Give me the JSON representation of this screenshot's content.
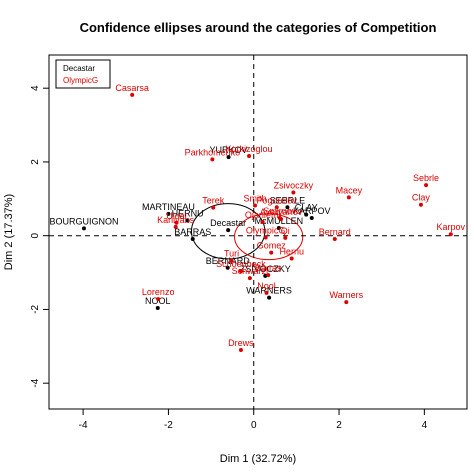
{
  "chart_data": {
    "type": "scatter",
    "title": "Confidence ellipses around the categories of Competition",
    "xlabel": "Dim 1 (32.72%)",
    "ylabel": "Dim 2 (17.37%)",
    "xlim": [
      -4.8,
      5.0
    ],
    "ylim": [
      -4.7,
      4.9
    ],
    "x_ticks": [
      -4,
      -2,
      0,
      2,
      4
    ],
    "y_ticks": [
      -4,
      -2,
      0,
      2,
      4
    ],
    "reference_lines": {
      "x": 0,
      "y": 0,
      "style": "dashed"
    },
    "grid": false,
    "legend": {
      "position": "top-left",
      "entries": [
        "Decastar",
        "OlympicG"
      ]
    },
    "colors": {
      "Decastar": "#000000",
      "OlympicG": "#dd0000"
    },
    "series": [
      {
        "name": "Decastar",
        "points": [
          {
            "label": "SEBRLE",
            "x": 0.79,
            "y": 0.77
          },
          {
            "label": "CLAY",
            "x": 1.23,
            "y": 0.57
          },
          {
            "label": "KARPOV",
            "x": 1.36,
            "y": 0.48
          },
          {
            "label": "BERNARD",
            "x": -0.61,
            "y": -0.87
          },
          {
            "label": "YURKOV",
            "x": -0.59,
            "y": 2.13
          },
          {
            "label": "WARNERS",
            "x": 0.36,
            "y": -1.68
          },
          {
            "label": "ZSIVOCZKY",
            "x": 0.27,
            "y": -1.09
          },
          {
            "label": "McMULLEN",
            "x": 0.59,
            "y": 0.21
          },
          {
            "label": "MARTINEAU",
            "x": -2.0,
            "y": 0.59
          },
          {
            "label": "HERNU",
            "x": -1.55,
            "y": 0.41
          },
          {
            "label": "BARRAS",
            "x": -1.43,
            "y": -0.09
          },
          {
            "label": "NOOL",
            "x": -2.25,
            "y": -1.96
          },
          {
            "label": "BOURGUIGNON",
            "x": -3.98,
            "y": 0.2
          }
        ]
      },
      {
        "name": "OlympicG",
        "points": [
          {
            "label": "Sebrle",
            "x": 4.04,
            "y": 1.37
          },
          {
            "label": "Clay",
            "x": 3.92,
            "y": 0.84
          },
          {
            "label": "Karpov",
            "x": 4.62,
            "y": 0.04
          },
          {
            "label": "Macey",
            "x": 2.23,
            "y": 1.04
          },
          {
            "label": "Warners",
            "x": 2.17,
            "y": -1.8
          },
          {
            "label": "Zsivoczky",
            "x": 0.93,
            "y": 1.17
          },
          {
            "label": "Hernu",
            "x": 0.89,
            "y": -0.62
          },
          {
            "label": "Nool",
            "x": 0.3,
            "y": -1.55
          },
          {
            "label": "Bernard",
            "x": 1.9,
            "y": -0.09
          },
          {
            "label": "Schwarzl",
            "x": -0.09,
            "y": -1.15
          },
          {
            "label": "Pogorelov",
            "x": 0.54,
            "y": 0.77
          },
          {
            "label": "Schoenbeck",
            "x": -0.3,
            "y": -0.96
          },
          {
            "label": "Barras",
            "x": 0.34,
            "y": -1.07
          },
          {
            "label": "Smith",
            "x": 0.03,
            "y": 0.82
          },
          {
            "label": "Averyanov",
            "x": 0.64,
            "y": 0.45
          },
          {
            "label": "Ojaniemi",
            "x": 0.21,
            "y": 0.37
          },
          {
            "label": "Smirnov",
            "x": 0.61,
            "y": 0.48
          },
          {
            "label": "Qi",
            "x": 0.74,
            "y": -0.06
          },
          {
            "label": "Drews",
            "x": -0.3,
            "y": -3.1
          },
          {
            "label": "Parkhomenko",
            "x": -0.97,
            "y": 2.07
          },
          {
            "label": "Terek",
            "x": -0.95,
            "y": 0.76
          },
          {
            "label": "Gomez",
            "x": 0.41,
            "y": -0.46
          },
          {
            "label": "Turi",
            "x": -0.52,
            "y": -0.67
          },
          {
            "label": "Lorenzo",
            "x": -2.24,
            "y": -1.72
          },
          {
            "label": "Karlivans",
            "x": -1.83,
            "y": 0.24
          },
          {
            "label": "Korkizoglou",
            "x": -0.11,
            "y": 2.16
          },
          {
            "label": "Uldal",
            "x": -1.81,
            "y": 0.35
          },
          {
            "label": "Casarsa",
            "x": -2.85,
            "y": 3.82
          }
        ]
      }
    ],
    "category_means": [
      {
        "label": "Decastar",
        "x": -0.6,
        "y": 0.15,
        "color": "#000000"
      },
      {
        "label": "OlympicG",
        "x": 0.28,
        "y": -0.05,
        "color": "#dd0000"
      }
    ],
    "ellipses": [
      {
        "name": "Decastar",
        "cx": -0.6,
        "cy": 0.12,
        "rx": 0.86,
        "ry": 0.75,
        "color": "#000000"
      },
      {
        "name": "OlympicG",
        "cx": 0.35,
        "cy": -0.03,
        "rx": 0.8,
        "ry": 0.62,
        "color": "#dd0000"
      }
    ]
  }
}
